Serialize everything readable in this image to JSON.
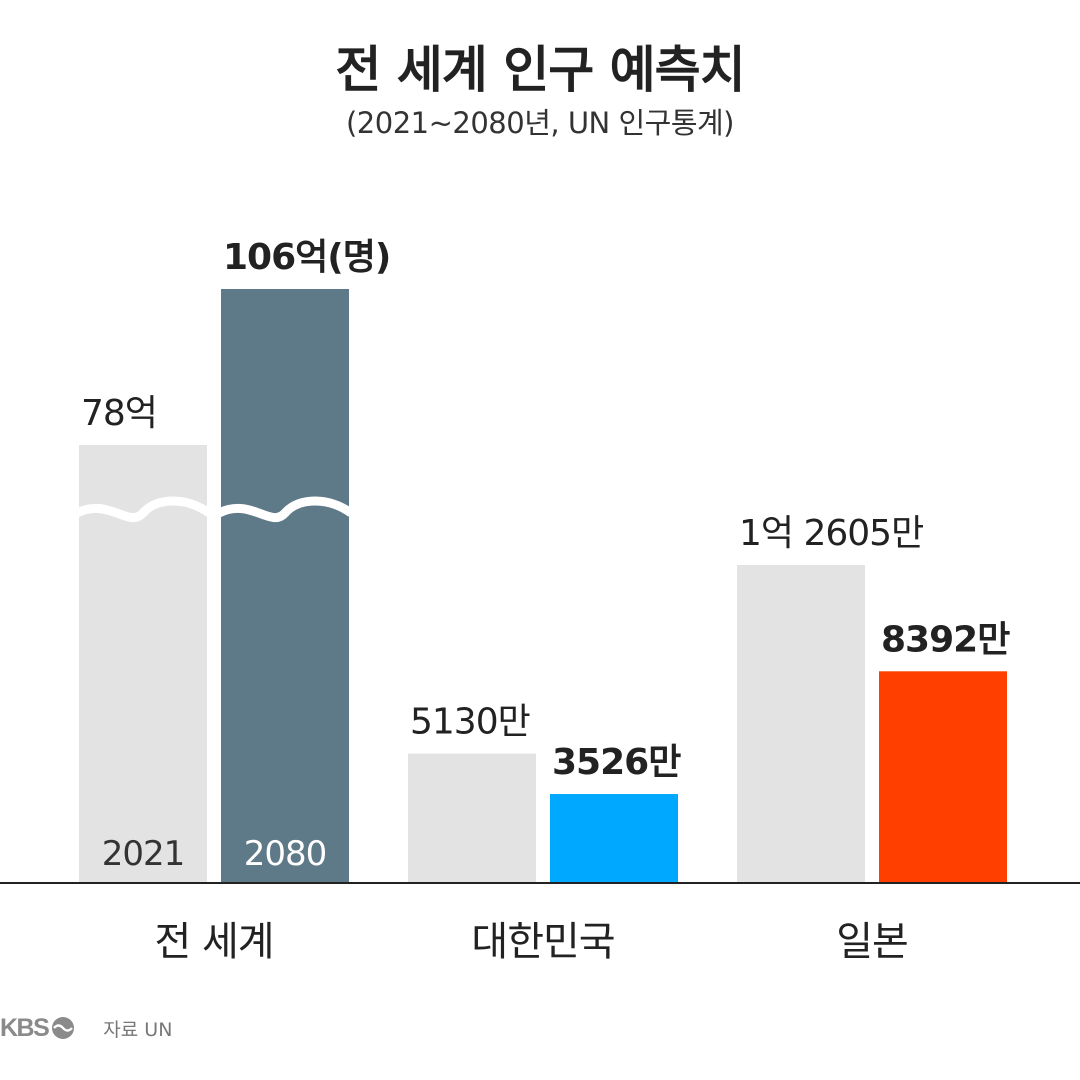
{
  "chart_data": {
    "type": "bar",
    "title": "전 세계 인구 예측치",
    "subtitle": "(2021~2080년, UN 인구통계)",
    "series_labels": [
      "2021",
      "2080"
    ],
    "groups": [
      {
        "name": "전 세계",
        "values": [
          7800000000,
          10600000000
        ],
        "labels": [
          "78억",
          "106억(명)"
        ],
        "axis_break": true
      },
      {
        "name": "대한민국",
        "values": [
          51300000,
          35260000
        ],
        "labels": [
          "5130만",
          "3526만"
        ],
        "axis_break": false
      },
      {
        "name": "일본",
        "values": [
          126050000,
          83920000
        ],
        "labels": [
          "1억 2605만",
          "8392만"
        ],
        "axis_break": false
      }
    ],
    "unit": "명",
    "colors": {
      "bar_2021": "#e3e3e3",
      "world_2080": "#5e7988",
      "korea_2080": "#00a9ff",
      "japan_2080": "#ff3f00",
      "baseline": "#222222"
    },
    "xlabel": "",
    "ylabel": ""
  },
  "footer": {
    "logo_text": "KBS",
    "logo_icon": "kbs-logo-icon",
    "source": "자료 UN"
  }
}
